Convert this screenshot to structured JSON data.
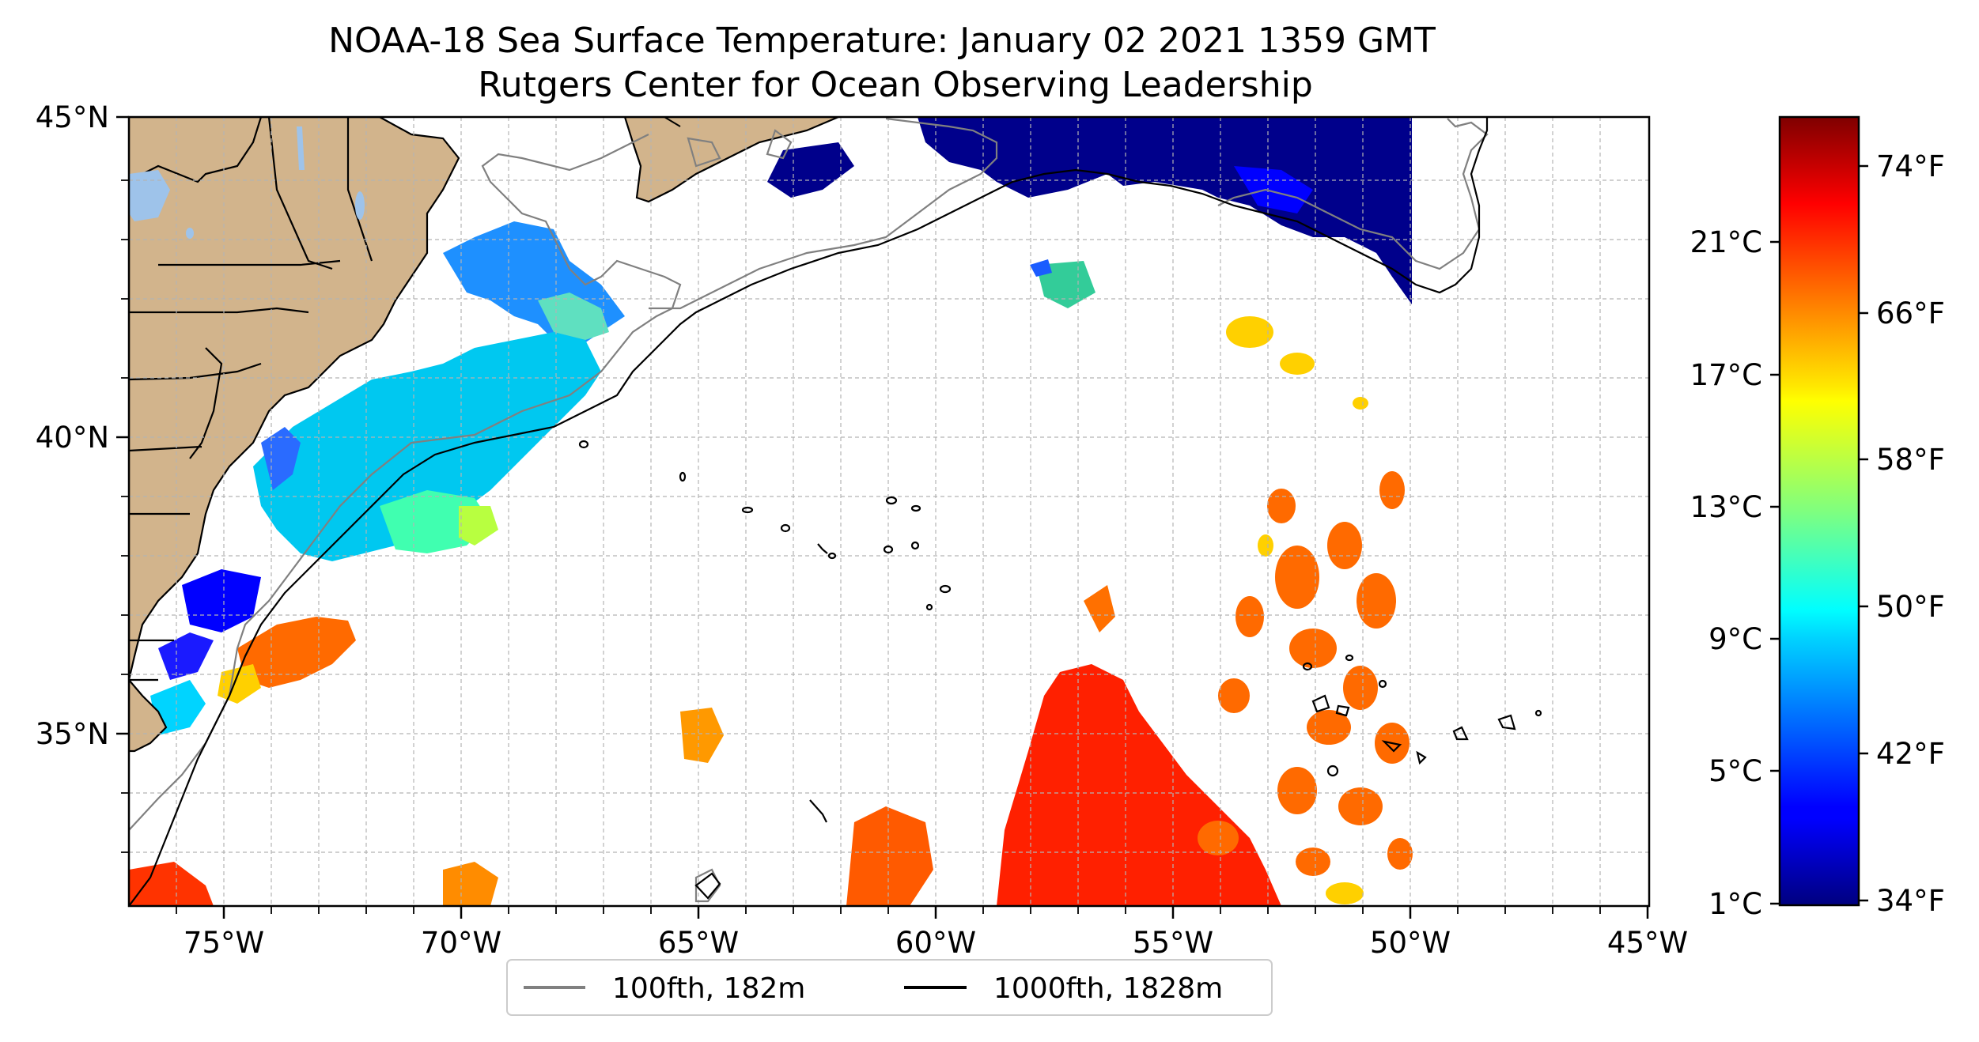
{
  "title": {
    "line1": "NOAA-18 Sea Surface Temperature: January 02 2021 1359 GMT",
    "line2": "Rutgers Center for Ocean Observing Leadership"
  },
  "map": {
    "lon_range": [
      -77,
      -45
    ],
    "lat_range": [
      32.5,
      45
    ],
    "lon_ticks": [
      {
        "value": -75,
        "label": "75°W"
      },
      {
        "value": -70,
        "label": "70°W"
      },
      {
        "value": -65,
        "label": "65°W"
      },
      {
        "value": -60,
        "label": "60°W"
      },
      {
        "value": -55,
        "label": "55°W"
      },
      {
        "value": -50,
        "label": "50°W"
      },
      {
        "value": -45,
        "label": "45°W"
      }
    ],
    "lat_ticks": [
      {
        "value": 45,
        "label": "45°N"
      },
      {
        "value": 40,
        "label": "40°N"
      },
      {
        "value": 35,
        "label": "35°N"
      }
    ],
    "grid": "dashed, 1° spacing",
    "land_color": "#d2b48c",
    "lake_color": "#9ec3ea"
  },
  "legend": {
    "placement": "below map, centered",
    "items": [
      {
        "label": "100fth, 182m",
        "color": "#808080"
      },
      {
        "label": "1000fth, 1828m",
        "color": "#000000"
      }
    ]
  },
  "colorbar": {
    "colormap": "jet",
    "range_c": [
      1,
      24.5
    ],
    "celsius_ticks": [
      {
        "value": 1,
        "label": "1°C"
      },
      {
        "value": 5,
        "label": "5°C"
      },
      {
        "value": 9,
        "label": "9°C"
      },
      {
        "value": 13,
        "label": "13°C"
      },
      {
        "value": 17,
        "label": "17°C"
      },
      {
        "value": 21,
        "label": "21°C"
      }
    ],
    "fahrenheit_ticks": [
      {
        "value": 34,
        "label": "34°F"
      },
      {
        "value": 42,
        "label": "42°F"
      },
      {
        "value": 50,
        "label": "50°F"
      },
      {
        "value": 58,
        "label": "58°F"
      },
      {
        "value": 66,
        "label": "66°F"
      },
      {
        "value": 74,
        "label": "74°F"
      }
    ]
  }
}
